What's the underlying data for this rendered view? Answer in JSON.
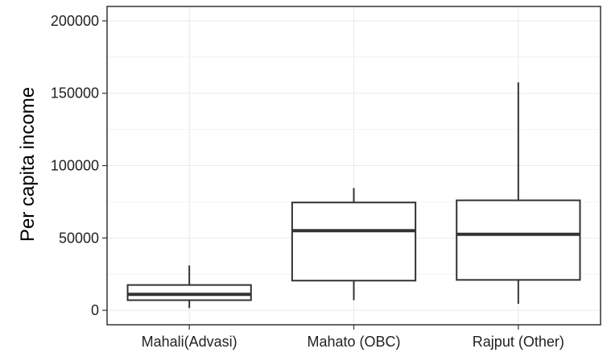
{
  "chart_data": {
    "type": "boxplot",
    "title": "",
    "xlabel": "",
    "ylabel": "Per capita income",
    "ylim": [
      -10000,
      210000
    ],
    "y_ticks": [
      0,
      50000,
      100000,
      150000,
      200000
    ],
    "y_tick_labels": [
      "0",
      "50000",
      "100000",
      "150000",
      "200000"
    ],
    "grid": true,
    "legend": "none",
    "categories": [
      "Mahali(Advasi)",
      "Mahato (OBC)",
      "Rajput (Other)"
    ],
    "boxes": [
      {
        "category": "Mahali(Advasi)",
        "min": 1500,
        "q1": 7000,
        "median": 11000,
        "q3": 17500,
        "max": 31000
      },
      {
        "category": "Mahato (OBC)",
        "min": 7000,
        "q1": 20500,
        "median": 55000,
        "q3": 74500,
        "max": 84500
      },
      {
        "category": "Rajput (Other)",
        "min": 4500,
        "q1": 21000,
        "median": 52500,
        "q3": 76000,
        "max": 157500
      }
    ],
    "colors": {
      "box_stroke": "#333333",
      "box_fill": "#ffffff",
      "grid": "#ebebeb",
      "panel_border": "#333333"
    }
  }
}
